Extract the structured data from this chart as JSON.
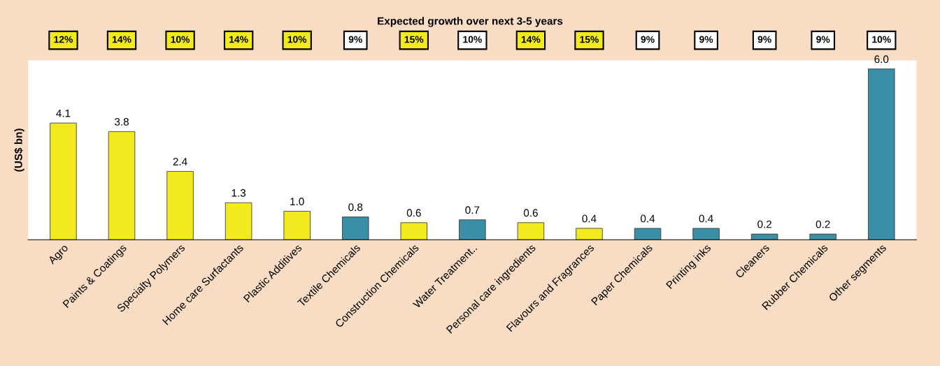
{
  "chart_data": {
    "type": "bar",
    "title": "Expected growth over next 3-5 years",
    "ylabel": "(US$ bn)",
    "categories": [
      "Agro",
      "Paints & Coatings",
      "Specialty Polymers",
      "Home care Surfactants",
      "Plastic Additives",
      "Textile Chemicals",
      "Construction Chemicals",
      "Water Treatment..",
      "Personal care ingredients",
      "Flavours and Fragrances",
      "Paper Chemicals",
      "Printing inks",
      "Cleaners",
      "Rubber Chemicals",
      "Other segments"
    ],
    "values": [
      4.1,
      3.8,
      2.4,
      1.3,
      1.0,
      0.8,
      0.6,
      0.7,
      0.6,
      0.4,
      0.4,
      0.4,
      0.2,
      0.2,
      6.0
    ],
    "value_labels": [
      "4.1",
      "3.8",
      "2.4",
      "1.3",
      "1.0",
      "0.8",
      "0.6",
      "0.7",
      "0.6",
      "0.4",
      "0.4",
      "0.4",
      "0.2",
      "0.2",
      "6.0"
    ],
    "colors": [
      "#f2ea1c",
      "#f2ea1c",
      "#f2ea1c",
      "#f2ea1c",
      "#f2ea1c",
      "#3a8ea5",
      "#f2ea1c",
      "#3a8ea5",
      "#f2ea1c",
      "#f2ea1c",
      "#3a8ea5",
      "#3a8ea5",
      "#3a8ea5",
      "#3a8ea5",
      "#3a8ea5"
    ],
    "grid": false,
    "legend": false,
    "tick_labels": "x",
    "annotations": [
      "12%",
      "14%",
      "10%",
      "14%",
      "10%",
      "9%",
      "15%",
      "10%",
      "14%",
      "15%",
      "9%",
      "9%",
      "9%",
      "9%",
      "10%"
    ]
  }
}
